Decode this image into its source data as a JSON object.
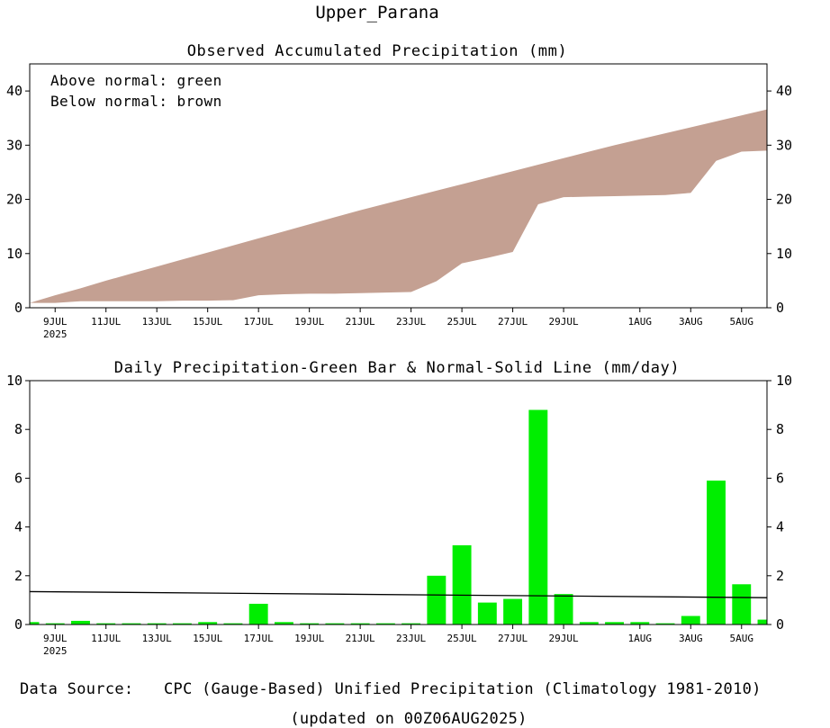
{
  "title": "Upper_Parana",
  "footer": {
    "source_label": "Data Source:",
    "source_text": "CPC (Gauge-Based) Unified Precipitation (Climatology 1981-2010)",
    "updated": "(updated on 00Z06AUG2025)"
  },
  "colors": {
    "above_normal": "#00cc00",
    "below_normal": "#c4a092",
    "bar": "#00ee00",
    "source_label": "#ff3333"
  },
  "chart_data": [
    {
      "type": "area",
      "title": "Observed Accumulated Precipitation (mm)",
      "legend": [
        "Above normal: green",
        "Below normal: brown"
      ],
      "legend_position": "top-left",
      "x_ticks": [
        {
          "day": 1,
          "label": "9JUL",
          "sub": "2025"
        },
        {
          "day": 3,
          "label": "11JUL"
        },
        {
          "day": 5,
          "label": "13JUL"
        },
        {
          "day": 7,
          "label": "15JUL"
        },
        {
          "day": 9,
          "label": "17JUL"
        },
        {
          "day": 11,
          "label": "19JUL"
        },
        {
          "day": 13,
          "label": "21JUL"
        },
        {
          "day": 15,
          "label": "23JUL"
        },
        {
          "day": 17,
          "label": "25JUL"
        },
        {
          "day": 19,
          "label": "27JUL"
        },
        {
          "day": 21,
          "label": "29JUL"
        },
        {
          "day": 24,
          "label": "1AUG"
        },
        {
          "day": 26,
          "label": "3AUG"
        },
        {
          "day": 28,
          "label": "5AUG"
        }
      ],
      "y_ticks": [
        0,
        10,
        20,
        30,
        40
      ],
      "ylim": [
        0,
        45
      ],
      "xlim": [
        0,
        29
      ],
      "x": [
        0,
        1,
        2,
        3,
        4,
        5,
        6,
        7,
        8,
        9,
        10,
        11,
        12,
        13,
        14,
        15,
        16,
        17,
        18,
        19,
        20,
        21,
        22,
        23,
        24,
        25,
        26,
        27,
        28,
        29
      ],
      "observed": [
        0.9,
        0.9,
        1.2,
        1.2,
        1.2,
        1.2,
        1.3,
        1.3,
        1.4,
        2.3,
        2.5,
        2.6,
        2.6,
        2.7,
        2.8,
        2.9,
        4.9,
        8.2,
        9.2,
        10.3,
        19.1,
        20.4,
        20.5,
        20.6,
        20.7,
        20.8,
        21.2,
        27.1,
        28.8,
        29.0
      ],
      "normal": [
        0.9,
        2.3,
        3.6,
        5.0,
        6.3,
        7.6,
        8.9,
        10.2,
        11.5,
        12.8,
        14.1,
        15.4,
        16.7,
        18.0,
        19.2,
        20.4,
        21.6,
        22.8,
        24.0,
        25.2,
        26.4,
        27.6,
        28.8,
        30.0,
        31.1,
        32.2,
        33.3,
        34.4,
        35.5,
        36.6
      ]
    },
    {
      "type": "bar",
      "title": "Daily Precipitation-Green Bar & Normal-Solid Line (mm/day)",
      "x_ticks": [
        {
          "day": 1,
          "label": "9JUL",
          "sub": "2025"
        },
        {
          "day": 3,
          "label": "11JUL"
        },
        {
          "day": 5,
          "label": "13JUL"
        },
        {
          "day": 7,
          "label": "15JUL"
        },
        {
          "day": 9,
          "label": "17JUL"
        },
        {
          "day": 11,
          "label": "19JUL"
        },
        {
          "day": 13,
          "label": "21JUL"
        },
        {
          "day": 15,
          "label": "23JUL"
        },
        {
          "day": 17,
          "label": "25JUL"
        },
        {
          "day": 19,
          "label": "27JUL"
        },
        {
          "day": 21,
          "label": "29JUL"
        },
        {
          "day": 24,
          "label": "1AUG"
        },
        {
          "day": 26,
          "label": "3AUG"
        },
        {
          "day": 28,
          "label": "5AUG"
        }
      ],
      "y_ticks": [
        0,
        2,
        4,
        6,
        8,
        10
      ],
      "ylim": [
        0,
        10
      ],
      "xlim": [
        0,
        29
      ],
      "x": [
        0,
        1,
        2,
        3,
        4,
        5,
        6,
        7,
        8,
        9,
        10,
        11,
        12,
        13,
        14,
        15,
        16,
        17,
        18,
        19,
        20,
        21,
        22,
        23,
        24,
        25,
        26,
        27,
        28,
        29
      ],
      "values": [
        0.1,
        0.05,
        0.15,
        0.05,
        0.05,
        0.05,
        0.05,
        0.1,
        0.05,
        0.85,
        0.1,
        0.05,
        0.05,
        0.05,
        0.05,
        0.05,
        2.0,
        3.25,
        0.9,
        1.05,
        8.8,
        1.25,
        0.1,
        0.1,
        0.1,
        0.05,
        0.35,
        5.9,
        1.65,
        0.2
      ],
      "normal_line": {
        "x": [
          0,
          29
        ],
        "y": [
          1.35,
          1.1
        ]
      }
    }
  ]
}
